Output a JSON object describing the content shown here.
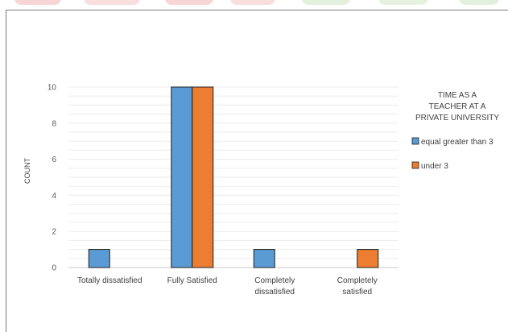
{
  "chart_data": {
    "type": "bar",
    "categories": [
      [
        "Totally dissatisfied"
      ],
      [
        "Fully Satisfied"
      ],
      [
        "Completely",
        "dissatisfied"
      ],
      [
        "Completely",
        "satisfied"
      ]
    ],
    "series": [
      {
        "name": "equal greater than 3",
        "color": "#5b9bd5",
        "values": [
          1,
          10,
          1,
          0
        ]
      },
      {
        "name": "under 3",
        "color": "#ed7d31",
        "values": [
          0,
          10,
          0,
          1
        ]
      }
    ],
    "title": "",
    "xlabel": "",
    "ylabel": "COUNT",
    "ylim": [
      0,
      10
    ],
    "yticks": [
      0,
      2,
      4,
      6,
      8,
      10
    ],
    "grid": true,
    "legend": {
      "title": [
        "TIME AS A",
        "TEACHER AT A",
        "PRIVATE UNIVERSITY"
      ],
      "position": "right"
    }
  }
}
